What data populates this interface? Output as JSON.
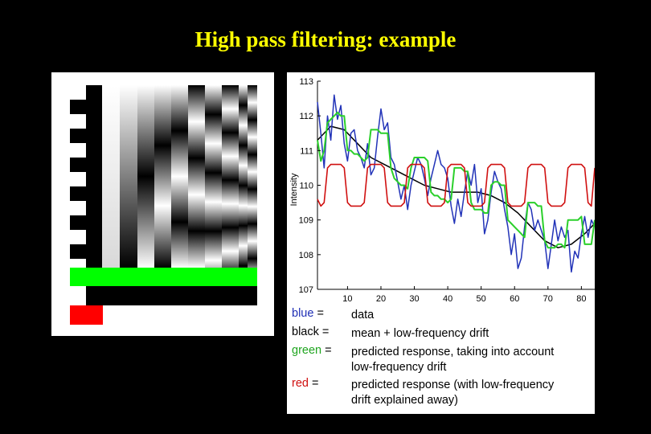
{
  "slide": {
    "title": "High pass filtering: example"
  },
  "design_matrix": {
    "regressor_color": "#00ff00",
    "intercept_color": "#ff0000"
  },
  "legend": [
    {
      "key_color": "blue",
      "key_word": "blue",
      "eq": " =",
      "desc": "data",
      "color": "#1f2fb5"
    },
    {
      "key_color": "black",
      "key_word": "black",
      "eq": " =",
      "desc": "mean + low-frequency drift",
      "color": "#000000"
    },
    {
      "key_color": "green",
      "key_word": "green",
      "eq": " =",
      "desc": "predicted response, taking into account",
      "desc2": "low-frequency drift",
      "color": "#1fa51f"
    },
    {
      "key_color": "red",
      "key_word": "red",
      "eq": " =",
      "desc": "predicted response (with low-frequency",
      "desc2": "drift explained away)",
      "color": "#d01010"
    }
  ],
  "chart_data": {
    "type": "line",
    "ylabel": "Intensity",
    "xlabel": "",
    "xlim": [
      1,
      84
    ],
    "ylim": [
      107,
      113
    ],
    "xticks": [
      "10",
      "20",
      "30",
      "40",
      "50",
      "60",
      "70",
      "80"
    ],
    "yticks": [
      "107",
      "108",
      "109",
      "110",
      "111",
      "112",
      "113"
    ],
    "series": [
      {
        "key": "data",
        "color": "#2233b8",
        "x": [
          1,
          2,
          3,
          4,
          5,
          6,
          7,
          8,
          9,
          10,
          11,
          12,
          13,
          14,
          15,
          16,
          17,
          18,
          19,
          20,
          21,
          22,
          23,
          24,
          25,
          26,
          27,
          28,
          29,
          30,
          31,
          32,
          33,
          34,
          35,
          36,
          37,
          38,
          39,
          40,
          41,
          42,
          43,
          44,
          45,
          46,
          47,
          48,
          49,
          50,
          51,
          52,
          53,
          54,
          55,
          56,
          57,
          58,
          59,
          60,
          61,
          62,
          63,
          64,
          65,
          66,
          67,
          68,
          69,
          70,
          71,
          72,
          73,
          74,
          75,
          76,
          77,
          78,
          79,
          80,
          81,
          82,
          83,
          84
        ],
        "values": [
          112.4,
          111.5,
          110.5,
          112.0,
          111.3,
          112.6,
          111.9,
          112.3,
          111.2,
          110.7,
          111.5,
          111.6,
          111.0,
          110.8,
          110.5,
          111.2,
          110.3,
          110.5,
          111.4,
          112.2,
          111.6,
          111.8,
          110.8,
          110.6,
          110.1,
          109.6,
          110.0,
          109.3,
          110.0,
          110.4,
          110.8,
          110.6,
          110.2,
          109.7,
          110.2,
          110.6,
          111.0,
          110.6,
          110.5,
          110.2,
          109.4,
          108.9,
          109.6,
          109.1,
          109.8,
          110.4,
          110.0,
          110.6,
          109.5,
          109.9,
          108.6,
          109.0,
          109.8,
          110.4,
          110.1,
          109.9,
          109.3,
          108.8,
          108.0,
          108.6,
          107.6,
          107.9,
          108.8,
          109.5,
          109.3,
          108.7,
          109.0,
          108.7,
          108.4,
          107.6,
          108.3,
          109.0,
          108.4,
          108.8,
          108.5,
          108.7,
          107.5,
          108.1,
          107.9,
          108.6,
          109.1,
          108.5,
          109.0,
          108.8
        ]
      },
      {
        "key": "drift",
        "color": "#000000",
        "x": [
          1,
          5,
          9,
          13,
          17,
          21,
          25,
          29,
          33,
          37,
          41,
          45,
          49,
          53,
          57,
          61,
          65,
          69,
          73,
          77,
          81,
          84
        ],
        "values": [
          111.3,
          111.7,
          111.6,
          111.2,
          110.8,
          110.6,
          110.4,
          110.2,
          110.0,
          109.9,
          109.8,
          109.8,
          109.8,
          109.7,
          109.5,
          109.2,
          108.8,
          108.4,
          108.2,
          108.3,
          108.6,
          108.9
        ]
      },
      {
        "key": "predicted",
        "color": "#2bd02b",
        "x": [
          1,
          2,
          3,
          4,
          5,
          6,
          7,
          8,
          9,
          10,
          11,
          12,
          13,
          14,
          15,
          16,
          17,
          18,
          19,
          20,
          21,
          22,
          23,
          24,
          25,
          26,
          27,
          28,
          29,
          30,
          31,
          32,
          33,
          34,
          35,
          36,
          37,
          38,
          39,
          40,
          41,
          42,
          43,
          44,
          45,
          46,
          47,
          48,
          49,
          50,
          51,
          52,
          53,
          54,
          55,
          56,
          57,
          58,
          59,
          60,
          61,
          62,
          63,
          64,
          65,
          66,
          67,
          68,
          69,
          70,
          71,
          72,
          73,
          74,
          75,
          76,
          77,
          78,
          79,
          80,
          81,
          82,
          83,
          84
        ],
        "values": [
          111.3,
          110.7,
          111.0,
          111.8,
          111.9,
          112.0,
          112.1,
          112.0,
          112.0,
          111.0,
          111.0,
          110.9,
          110.9,
          110.8,
          110.7,
          110.8,
          111.6,
          111.6,
          111.6,
          111.5,
          111.5,
          111.5,
          110.5,
          110.2,
          110.1,
          110.0,
          110.0,
          109.9,
          110.5,
          110.8,
          110.8,
          110.8,
          110.8,
          110.7,
          109.8,
          109.7,
          109.7,
          109.6,
          109.6,
          109.5,
          109.6,
          110.5,
          110.5,
          110.5,
          110.4,
          110.4,
          109.5,
          109.3,
          109.3,
          109.3,
          109.2,
          109.2,
          110.0,
          110.1,
          110.1,
          110.0,
          110.0,
          109.0,
          108.9,
          108.8,
          108.7,
          108.6,
          108.5,
          109.5,
          109.5,
          109.5,
          109.4,
          109.4,
          108.4,
          108.2,
          108.2,
          108.2,
          108.3,
          108.3,
          108.2,
          109.0,
          109.0,
          109.0,
          109.0,
          109.1,
          108.3,
          108.3,
          108.3,
          109.0
        ]
      },
      {
        "key": "predicted-no-drift",
        "color": "#d01010",
        "x": [
          1,
          2,
          3,
          4,
          5,
          6,
          7,
          8,
          9,
          10,
          11,
          12,
          13,
          14,
          15,
          16,
          17,
          18,
          19,
          20,
          21,
          22,
          23,
          24,
          25,
          26,
          27,
          28,
          29,
          30,
          31,
          32,
          33,
          34,
          35,
          36,
          37,
          38,
          39,
          40,
          41,
          42,
          43,
          44,
          45,
          46,
          47,
          48,
          49,
          50,
          51,
          52,
          53,
          54,
          55,
          56,
          57,
          58,
          59,
          60,
          61,
          62,
          63,
          64,
          65,
          66,
          67,
          68,
          69,
          70,
          71,
          72,
          73,
          74,
          75,
          76,
          77,
          78,
          79,
          80,
          81,
          82,
          83,
          84
        ],
        "values": [
          109.6,
          109.4,
          109.5,
          110.5,
          110.6,
          110.6,
          110.6,
          110.6,
          110.5,
          109.5,
          109.4,
          109.4,
          109.4,
          109.4,
          109.5,
          110.5,
          110.6,
          110.6,
          110.6,
          110.6,
          110.5,
          109.5,
          109.4,
          109.4,
          109.4,
          109.4,
          109.5,
          110.5,
          110.6,
          110.6,
          110.6,
          110.6,
          110.5,
          109.5,
          109.4,
          109.4,
          109.4,
          109.4,
          109.5,
          110.5,
          110.6,
          110.6,
          110.6,
          110.6,
          110.5,
          109.5,
          109.4,
          109.4,
          109.4,
          109.4,
          109.5,
          110.5,
          110.6,
          110.6,
          110.6,
          110.6,
          110.5,
          109.5,
          109.4,
          109.4,
          109.4,
          109.4,
          109.5,
          110.5,
          110.6,
          110.6,
          110.6,
          110.6,
          110.5,
          109.5,
          109.4,
          109.4,
          109.4,
          109.4,
          109.5,
          110.5,
          110.6,
          110.6,
          110.6,
          110.6,
          110.5,
          109.5,
          109.4,
          110.5
        ]
      }
    ]
  }
}
